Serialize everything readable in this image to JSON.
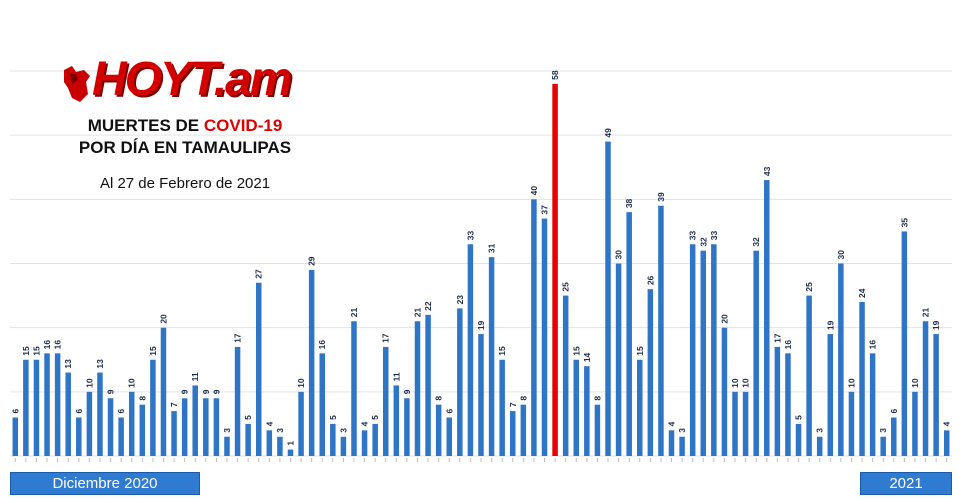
{
  "logo": {
    "text": "HOYT.am",
    "color": "#d40000"
  },
  "title": {
    "line1_prefix": "MUERTES DE ",
    "line1_highlight": "COVID-19",
    "line2": "POR DÍA EN TAMAULIPAS"
  },
  "subtitle": "Al 27 de Febrero de 2021",
  "month_tags": {
    "december": "Diciembre 2020",
    "year_2021": "2021"
  },
  "colors": {
    "bar": "#2e75c5",
    "highlight_bar": "#e60000",
    "grid": "#e3e3e3",
    "tag_bg": "#2f7bd2"
  },
  "chart_data": {
    "type": "bar",
    "title": "MUERTES DE COVID-19 POR DÍA EN TAMAULIPAS",
    "subtitle": "Al 27 de Febrero de 2021",
    "ylim": [
      0,
      60
    ],
    "grid": true,
    "values": [
      6,
      15,
      15,
      16,
      16,
      13,
      6,
      10,
      13,
      9,
      6,
      10,
      8,
      15,
      20,
      7,
      9,
      11,
      9,
      9,
      3,
      17,
      5,
      27,
      4,
      3,
      1,
      10,
      29,
      16,
      5,
      3,
      21,
      4,
      5,
      17,
      11,
      9,
      21,
      22,
      8,
      6,
      23,
      33,
      19,
      31,
      15,
      7,
      8,
      40,
      37,
      58,
      25,
      15,
      14,
      8,
      49,
      30,
      38,
      15,
      26,
      39,
      4,
      3,
      33,
      32,
      33,
      20,
      10,
      10,
      32,
      43,
      17,
      16,
      5,
      25,
      3,
      19,
      30,
      10,
      24,
      16,
      3,
      6,
      35,
      10,
      21,
      19,
      4
    ],
    "highlight_index": 51,
    "group_labels": [
      "Diciembre 2020",
      "2021"
    ]
  }
}
